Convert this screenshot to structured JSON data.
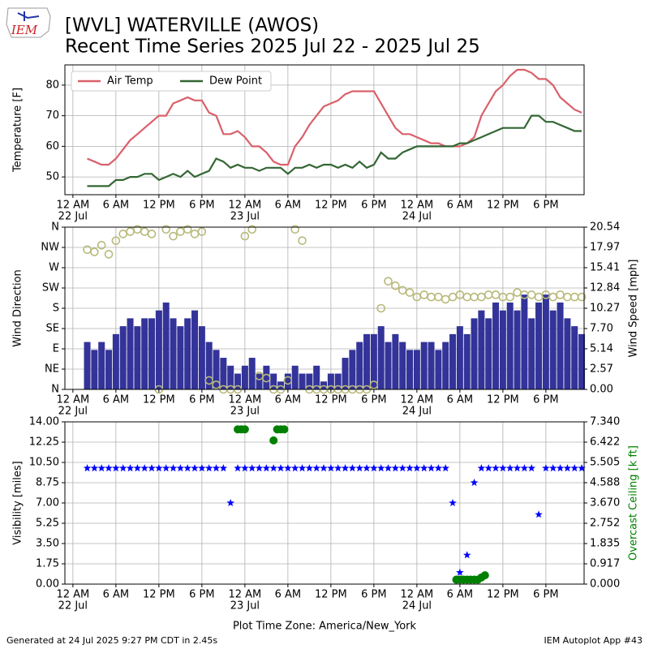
{
  "header": {
    "title": "[WVL] WATERVILLE (AWOS)",
    "subtitle": "Recent Time Series 2025 Jul 22 - 2025 Jul 25",
    "logo": "IEM"
  },
  "footer": {
    "left": "Generated at 24 Jul 2025 9:27 PM CDT in 2.45s",
    "right": "IEM Autoplot App #43"
  },
  "chart_data": [
    {
      "type": "line",
      "ylabel": "Temperature [F]",
      "grid": true,
      "legend": "upper left",
      "xlim": [
        "21 Jul 22:53",
        "24 Jul 23:20"
      ],
      "ylim": [
        44.2,
        86.6
      ],
      "yticks": [
        50,
        60,
        70,
        80
      ],
      "xticks": [
        {
          "value": "22 Jul 00:00",
          "label": "12 AM"
        },
        {
          "value": "22 Jul 06:00",
          "label": "6 AM"
        },
        {
          "value": "22 Jul 12:00",
          "label": "12 PM"
        },
        {
          "value": "22 Jul 18:00",
          "label": "6 PM"
        },
        {
          "value": "23 Jul 00:00",
          "label": "12 AM"
        },
        {
          "value": "23 Jul 06:00",
          "label": "6 AM"
        },
        {
          "value": "23 Jul 12:00",
          "label": "12 PM"
        },
        {
          "value": "23 Jul 18:00",
          "label": "6 PM"
        },
        {
          "value": "24 Jul 00:00",
          "label": "12 AM"
        },
        {
          "value": "24 Jul 06:00",
          "label": "6 AM"
        },
        {
          "value": "24 Jul 12:00",
          "label": "12 PM"
        },
        {
          "value": "24 Jul 18:00",
          "label": "6 PM"
        }
      ],
      "xdates": [
        {
          "value": "22 Jul 00:00",
          "label": "22 Jul"
        },
        {
          "value": "23 Jul 00:00",
          "label": "23 Jul"
        },
        {
          "value": "24 Jul 00:00",
          "label": "24 Jul"
        }
      ],
      "x": [
        "22 Jul 02:00",
        "22 Jul 03:00",
        "22 Jul 04:00",
        "22 Jul 05:00",
        "22 Jul 06:00",
        "22 Jul 07:00",
        "22 Jul 08:00",
        "22 Jul 09:00",
        "22 Jul 10:00",
        "22 Jul 11:00",
        "22 Jul 12:00",
        "22 Jul 13:00",
        "22 Jul 14:00",
        "22 Jul 15:00",
        "22 Jul 16:00",
        "22 Jul 17:00",
        "22 Jul 18:00",
        "22 Jul 19:00",
        "22 Jul 20:00",
        "22 Jul 21:00",
        "22 Jul 22:00",
        "22 Jul 23:00",
        "23 Jul 00:00",
        "23 Jul 01:00",
        "23 Jul 02:00",
        "23 Jul 03:00",
        "23 Jul 04:00",
        "23 Jul 05:00",
        "23 Jul 06:00",
        "23 Jul 07:00",
        "23 Jul 08:00",
        "23 Jul 09:00",
        "23 Jul 10:00",
        "23 Jul 11:00",
        "23 Jul 12:00",
        "23 Jul 13:00",
        "23 Jul 14:00",
        "23 Jul 15:00",
        "23 Jul 16:00",
        "23 Jul 17:00",
        "23 Jul 18:00",
        "23 Jul 19:00",
        "23 Jul 20:00",
        "23 Jul 21:00",
        "23 Jul 22:00",
        "23 Jul 23:00",
        "24 Jul 00:00",
        "24 Jul 01:00",
        "24 Jul 02:00",
        "24 Jul 03:00",
        "24 Jul 04:00",
        "24 Jul 05:00",
        "24 Jul 06:00",
        "24 Jul 07:00",
        "24 Jul 08:00",
        "24 Jul 09:00",
        "24 Jul 10:00",
        "24 Jul 11:00",
        "24 Jul 12:00",
        "24 Jul 13:00",
        "24 Jul 14:00",
        "24 Jul 15:00",
        "24 Jul 16:00",
        "24 Jul 17:00",
        "24 Jul 18:00",
        "24 Jul 19:00",
        "24 Jul 20:00",
        "24 Jul 21:00",
        "24 Jul 22:00",
        "24 Jul 23:00"
      ],
      "series": [
        {
          "name": "Air Temp",
          "color": "#d9606a",
          "values": [
            56,
            55,
            54,
            54,
            56,
            59,
            62,
            64,
            66,
            68,
            70,
            70,
            74,
            75,
            76,
            75,
            75,
            71,
            70,
            64,
            64,
            65,
            63,
            60,
            60,
            58,
            55,
            54,
            54,
            60,
            63,
            67,
            70,
            73,
            74,
            75,
            77,
            78,
            78,
            78,
            78,
            74,
            70,
            66,
            64,
            64,
            63,
            62,
            61,
            61,
            60,
            60,
            60,
            61,
            63,
            70,
            74,
            78,
            80,
            83,
            85,
            85,
            84,
            82,
            82,
            80,
            76,
            74,
            72,
            71
          ]
        },
        {
          "name": "Dew Point",
          "color": "#336633",
          "values": [
            47,
            47,
            47,
            47,
            49,
            49,
            50,
            50,
            51,
            51,
            49,
            50,
            51,
            50,
            52,
            50,
            51,
            52,
            56,
            55,
            53,
            54,
            53,
            53,
            52,
            53,
            53,
            53,
            51,
            53,
            53,
            54,
            53,
            54,
            54,
            53,
            54,
            53,
            55,
            53,
            54,
            58,
            56,
            56,
            58,
            59,
            60,
            60,
            60,
            60,
            60,
            60,
            61,
            61,
            62,
            63,
            64,
            65,
            66,
            66,
            66,
            66,
            70,
            70,
            68,
            68,
            67,
            66,
            65,
            65
          ]
        }
      ]
    },
    {
      "type": "bar",
      "ylabel": "Wind Direction",
      "y2label": "Wind Speed [mph]",
      "grid": true,
      "xlim": [
        "21 Jul 22:53",
        "24 Jul 23:20"
      ],
      "ylim": [
        0,
        360
      ],
      "yticks": [
        {
          "value": 0,
          "label": "N"
        },
        {
          "value": 45,
          "label": "NE"
        },
        {
          "value": 90,
          "label": "E"
        },
        {
          "value": 135,
          "label": "SE"
        },
        {
          "value": 180,
          "label": "S"
        },
        {
          "value": 225,
          "label": "SW"
        },
        {
          "value": 270,
          "label": "W"
        },
        {
          "value": 315,
          "label": "NW"
        },
        {
          "value": 360,
          "label": "N"
        }
      ],
      "y2lim": [
        0,
        20.54
      ],
      "y2ticks": [
        {
          "value": 0,
          "label": "0.00"
        },
        2.57,
        5.14,
        {
          "value": 7.7,
          "label": "7.70"
        },
        10.27,
        12.84,
        15.41,
        17.97,
        20.54
      ],
      "xticks": [
        {
          "value": "22 Jul 00:00",
          "label": "12 AM"
        },
        {
          "value": "22 Jul 06:00",
          "label": "6 AM"
        },
        {
          "value": "22 Jul 12:00",
          "label": "12 PM"
        },
        {
          "value": "22 Jul 18:00",
          "label": "6 PM"
        },
        {
          "value": "23 Jul 00:00",
          "label": "12 AM"
        },
        {
          "value": "23 Jul 06:00",
          "label": "6 AM"
        },
        {
          "value": "23 Jul 12:00",
          "label": "12 PM"
        },
        {
          "value": "23 Jul 18:00",
          "label": "6 PM"
        },
        {
          "value": "24 Jul 00:00",
          "label": "12 AM"
        },
        {
          "value": "24 Jul 06:00",
          "label": "6 AM"
        },
        {
          "value": "24 Jul 12:00",
          "label": "12 PM"
        },
        {
          "value": "24 Jul 18:00",
          "label": "6 PM"
        }
      ],
      "xdates": [
        {
          "value": "22 Jul 00:00",
          "label": "22 Jul"
        },
        {
          "value": "23 Jul 00:00",
          "label": "23 Jul"
        },
        {
          "value": "24 Jul 00:00",
          "label": "24 Jul"
        }
      ],
      "x": [
        "22 Jul 02:00",
        "22 Jul 03:00",
        "22 Jul 04:00",
        "22 Jul 05:00",
        "22 Jul 06:00",
        "22 Jul 07:00",
        "22 Jul 08:00",
        "22 Jul 09:00",
        "22 Jul 10:00",
        "22 Jul 11:00",
        "22 Jul 12:00",
        "22 Jul 13:00",
        "22 Jul 14:00",
        "22 Jul 15:00",
        "22 Jul 16:00",
        "22 Jul 17:00",
        "22 Jul 18:00",
        "22 Jul 19:00",
        "22 Jul 20:00",
        "22 Jul 21:00",
        "22 Jul 22:00",
        "22 Jul 23:00",
        "23 Jul 00:00",
        "23 Jul 01:00",
        "23 Jul 02:00",
        "23 Jul 03:00",
        "23 Jul 04:00",
        "23 Jul 05:00",
        "23 Jul 06:00",
        "23 Jul 07:00",
        "23 Jul 08:00",
        "23 Jul 09:00",
        "23 Jul 10:00",
        "23 Jul 11:00",
        "23 Jul 12:00",
        "23 Jul 13:00",
        "23 Jul 14:00",
        "23 Jul 15:00",
        "23 Jul 16:00",
        "23 Jul 17:00",
        "23 Jul 18:00",
        "23 Jul 19:00",
        "23 Jul 20:00",
        "23 Jul 21:00",
        "23 Jul 22:00",
        "23 Jul 23:00",
        "24 Jul 00:00",
        "24 Jul 01:00",
        "24 Jul 02:00",
        "24 Jul 03:00",
        "24 Jul 04:00",
        "24 Jul 05:00",
        "24 Jul 06:00",
        "24 Jul 07:00",
        "24 Jul 08:00",
        "24 Jul 09:00",
        "24 Jul 10:00",
        "24 Jul 11:00",
        "24 Jul 12:00",
        "24 Jul 13:00",
        "24 Jul 14:00",
        "24 Jul 15:00",
        "24 Jul 16:00",
        "24 Jul 17:00",
        "24 Jul 18:00",
        "24 Jul 19:00",
        "24 Jul 20:00",
        "24 Jul 21:00",
        "24 Jul 22:00",
        "24 Jul 23:00"
      ],
      "series": [
        {
          "type": "bar",
          "axis": "y2",
          "color": "#333399",
          "values": [
            6,
            5,
            6,
            5,
            7,
            8,
            9,
            8,
            9,
            9,
            10,
            11,
            9,
            8,
            9,
            10,
            8,
            6,
            5,
            4,
            3,
            2,
            3,
            4,
            2,
            3,
            2,
            1,
            2,
            3,
            2,
            2,
            3,
            1,
            2,
            2,
            4,
            5,
            6,
            7,
            7,
            8,
            6,
            7,
            6,
            5,
            5,
            6,
            6,
            5,
            6,
            7,
            8,
            7,
            9,
            10,
            9,
            11,
            10,
            11,
            10,
            12,
            9,
            11,
            12,
            10,
            11,
            9,
            8,
            7
          ]
        },
        {
          "type": "scatter",
          "marker": "circle-open",
          "color": "#b8b97a",
          "values": [
            310,
            305,
            320,
            300,
            330,
            345,
            350,
            355,
            350,
            345,
            0,
            355,
            340,
            350,
            355,
            345,
            350,
            20,
            10,
            0,
            0,
            0,
            340,
            355,
            30,
            25,
            0,
            0,
            20,
            355,
            330,
            0,
            0,
            0,
            0,
            0,
            0,
            0,
            0,
            0,
            10,
            180,
            240,
            230,
            220,
            215,
            205,
            210,
            205,
            205,
            200,
            205,
            210,
            205,
            205,
            205,
            210,
            210,
            205,
            205,
            215,
            210,
            210,
            205,
            210,
            205,
            210,
            205,
            205,
            205
          ]
        }
      ]
    },
    {
      "type": "scatter",
      "ylabel": "Visibility [miles]",
      "y2label": "Overcast Ceiling [k ft]",
      "y2label_color": "#008000",
      "xlabel": "Plot Time Zone: America/New_York",
      "grid": true,
      "xlim": [
        "21 Jul 22:53",
        "24 Jul 23:20"
      ],
      "ylim": [
        0,
        14
      ],
      "yticks": [
        {
          "value": 0,
          "label": "0.00"
        },
        1.75,
        {
          "value": 3.5,
          "label": "3.50"
        },
        5.25,
        {
          "value": 7,
          "label": "7.00"
        },
        8.75,
        {
          "value": 10.5,
          "label": "10.50"
        },
        12.25,
        {
          "value": 14,
          "label": "14.00"
        }
      ],
      "y2lim": [
        0,
        7.34
      ],
      "y2ticks": [
        {
          "value": 0,
          "label": "0.000"
        },
        0.917,
        1.835,
        2.752,
        {
          "value": 3.67,
          "label": "3.670"
        },
        4.588,
        5.505,
        6.422,
        {
          "value": 7.34,
          "label": "7.340"
        }
      ],
      "xticks": [
        {
          "value": "22 Jul 00:00",
          "label": "12 AM"
        },
        {
          "value": "22 Jul 06:00",
          "label": "6 AM"
        },
        {
          "value": "22 Jul 12:00",
          "label": "12 PM"
        },
        {
          "value": "22 Jul 18:00",
          "label": "6 PM"
        },
        {
          "value": "23 Jul 00:00",
          "label": "12 AM"
        },
        {
          "value": "23 Jul 06:00",
          "label": "6 AM"
        },
        {
          "value": "23 Jul 12:00",
          "label": "12 PM"
        },
        {
          "value": "23 Jul 18:00",
          "label": "6 PM"
        },
        {
          "value": "24 Jul 00:00",
          "label": "12 AM"
        },
        {
          "value": "24 Jul 06:00",
          "label": "6 AM"
        },
        {
          "value": "24 Jul 12:00",
          "label": "12 PM"
        },
        {
          "value": "24 Jul 18:00",
          "label": "6 PM"
        }
      ],
      "xdates": [
        {
          "value": "22 Jul 00:00",
          "label": "22 Jul"
        },
        {
          "value": "23 Jul 00:00",
          "label": "23 Jul"
        },
        {
          "value": "24 Jul 00:00",
          "label": "24 Jul"
        }
      ],
      "x": [
        "22 Jul 02:00",
        "22 Jul 03:00",
        "22 Jul 04:00",
        "22 Jul 05:00",
        "22 Jul 06:00",
        "22 Jul 07:00",
        "22 Jul 08:00",
        "22 Jul 09:00",
        "22 Jul 10:00",
        "22 Jul 11:00",
        "22 Jul 12:00",
        "22 Jul 13:00",
        "22 Jul 14:00",
        "22 Jul 15:00",
        "22 Jul 16:00",
        "22 Jul 17:00",
        "22 Jul 18:00",
        "22 Jul 19:00",
        "22 Jul 20:00",
        "22 Jul 21:00",
        "22 Jul 22:00",
        "22 Jul 23:00",
        "23 Jul 00:00",
        "23 Jul 01:00",
        "23 Jul 02:00",
        "23 Jul 03:00",
        "23 Jul 04:00",
        "23 Jul 05:00",
        "23 Jul 06:00",
        "23 Jul 07:00",
        "23 Jul 08:00",
        "23 Jul 09:00",
        "23 Jul 10:00",
        "23 Jul 11:00",
        "23 Jul 12:00",
        "23 Jul 13:00",
        "23 Jul 14:00",
        "23 Jul 15:00",
        "23 Jul 16:00",
        "23 Jul 17:00",
        "23 Jul 18:00",
        "23 Jul 19:00",
        "23 Jul 20:00",
        "23 Jul 21:00",
        "23 Jul 22:00",
        "23 Jul 23:00",
        "24 Jul 00:00",
        "24 Jul 01:00",
        "24 Jul 02:00",
        "24 Jul 03:00",
        "24 Jul 04:00",
        "24 Jul 05:00",
        "24 Jul 06:00",
        "24 Jul 07:00",
        "24 Jul 08:00",
        "24 Jul 09:00",
        "24 Jul 10:00",
        "24 Jul 11:00",
        "24 Jul 12:00",
        "24 Jul 13:00",
        "24 Jul 14:00",
        "24 Jul 15:00",
        "24 Jul 16:00",
        "24 Jul 17:00",
        "24 Jul 18:00",
        "24 Jul 19:00",
        "24 Jul 20:00",
        "24 Jul 21:00",
        "24 Jul 22:00",
        "24 Jul 23:00"
      ],
      "series": [
        {
          "marker": "star",
          "color": "#0000ff",
          "values": [
            10,
            10,
            10,
            10,
            10,
            10,
            10,
            10,
            10,
            10,
            10,
            10,
            10,
            10,
            10,
            10,
            10,
            10,
            10,
            10,
            7,
            10,
            10,
            10,
            10,
            10,
            10,
            10,
            10,
            10,
            10,
            10,
            10,
            10,
            10,
            10,
            10,
            10,
            10,
            10,
            10,
            10,
            10,
            10,
            10,
            10,
            10,
            10,
            10,
            10,
            10,
            7,
            1,
            2.5,
            8.75,
            10,
            10,
            10,
            10,
            10,
            10,
            10,
            10,
            6,
            10,
            10,
            10,
            10,
            10,
            10
          ]
        },
        {
          "marker": "circle",
          "axis": "y2",
          "color": "#008000",
          "x": [
            "22 Jul 23:00",
            "22 Jul 23:30",
            "23 Jul 00:00",
            "23 Jul 04:00",
            "23 Jul 04:30",
            "23 Jul 05:00",
            "23 Jul 05:30",
            "24 Jul 05:30",
            "24 Jul 06:00",
            "24 Jul 06:30",
            "24 Jul 07:00",
            "24 Jul 07:30",
            "24 Jul 08:00",
            "24 Jul 08:30",
            "24 Jul 09:00",
            "24 Jul 09:30"
          ],
          "values": [
            7.0,
            7.0,
            7.0,
            6.5,
            7.0,
            7.0,
            7.0,
            0.2,
            0.2,
            0.2,
            0.2,
            0.2,
            0.2,
            0.2,
            0.3,
            0.4
          ]
        }
      ]
    }
  ]
}
